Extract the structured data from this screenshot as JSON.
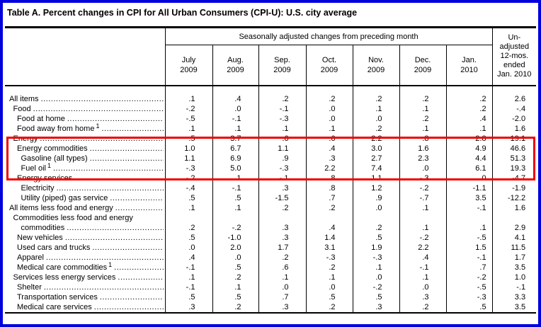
{
  "title": "Table A. Percent changes in CPI for All Urban Consumers (CPI-U): U.S. city average",
  "header": {
    "seasonal": "Seasonally adjusted changes from preceding month",
    "unadjusted_lines": [
      "Un-",
      "adjusted",
      "12-mos.",
      "ended",
      "Jan. 2010"
    ]
  },
  "table": {
    "month_columns": [
      {
        "month": "July",
        "year": "2009"
      },
      {
        "month": "Aug.",
        "year": "2009"
      },
      {
        "month": "Sep.",
        "year": "2009"
      },
      {
        "month": "Oct.",
        "year": "2009"
      },
      {
        "month": "Nov.",
        "year": "2009"
      },
      {
        "month": "Dec.",
        "year": "2009"
      },
      {
        "month": "Jan.",
        "year": "2010"
      }
    ],
    "rows": [
      {
        "label": "All items",
        "indent": 0,
        "values": [
          ".1",
          ".4",
          ".2",
          ".2",
          ".2",
          ".2",
          ".2"
        ],
        "annual": "2.6"
      },
      {
        "label": "Food",
        "indent": 1,
        "values": [
          "-.2",
          ".0",
          "-.1",
          ".0",
          ".1",
          ".1",
          ".2"
        ],
        "annual": "-.4"
      },
      {
        "label": "Food at home",
        "indent": 2,
        "values": [
          "-.5",
          "-.1",
          "-.3",
          ".0",
          ".0",
          ".2",
          ".4"
        ],
        "annual": "-2.0"
      },
      {
        "label": "Food away from home",
        "sup": "1",
        "indent": 2,
        "values": [
          ".1",
          ".1",
          ".1",
          ".1",
          ".2",
          ".1",
          ".1"
        ],
        "annual": "1.6"
      },
      {
        "label": "Energy",
        "indent": 1,
        "values": [
          ".5",
          "3.7",
          ".6",
          ".6",
          "2.2",
          ".8",
          "2.8"
        ],
        "annual": "19.1"
      },
      {
        "label": "Energy commodities",
        "indent": 2,
        "values": [
          "1.0",
          "6.7",
          "1.1",
          ".4",
          "3.0",
          "1.6",
          "4.9"
        ],
        "annual": "46.6"
      },
      {
        "label": "Gasoline (all types)",
        "indent": 3,
        "values": [
          "1.1",
          "6.9",
          ".9",
          ".3",
          "2.7",
          "2.3",
          "4.4"
        ],
        "annual": "51.3"
      },
      {
        "label": "Fuel oil",
        "sup": "1",
        "indent": 3,
        "values": [
          "-.3",
          "5.0",
          "-.3",
          "2.2",
          "7.4",
          ".0",
          "6.1"
        ],
        "annual": "19.3"
      },
      {
        "label": "Energy services",
        "indent": 2,
        "values": [
          "-.2",
          ".1",
          "-.1",
          ".8",
          "1.1",
          "-.3",
          ".0"
        ],
        "annual": "-4.7"
      },
      {
        "label": "Electricity",
        "indent": 3,
        "values": [
          "-.4",
          "-.1",
          ".3",
          ".8",
          "1.2",
          "-.2",
          "-1.1"
        ],
        "annual": "-1.9"
      },
      {
        "label": "Utility (piped) gas service",
        "indent": 3,
        "values": [
          ".5",
          ".5",
          "-1.5",
          ".7",
          ".9",
          "-.7",
          "3.5"
        ],
        "annual": "-12.2"
      },
      {
        "label": "All items less food and energy",
        "indent": 0,
        "values": [
          ".1",
          ".1",
          ".2",
          ".2",
          ".0",
          ".1",
          "-.1"
        ],
        "annual": "1.6"
      },
      {
        "label": "Commodities less food and energy",
        "label2": "commodities",
        "indent": 1,
        "values": [
          ".2",
          "-.2",
          ".3",
          ".4",
          ".2",
          ".1",
          ".1"
        ],
        "annual": "2.9"
      },
      {
        "label": "New vehicles",
        "indent": 2,
        "values": [
          ".5",
          "-1.0",
          ".3",
          "1.4",
          ".5",
          "-.2",
          "-.5"
        ],
        "annual": "4.1"
      },
      {
        "label": "Used cars and trucks",
        "indent": 2,
        "values": [
          ".0",
          "2.0",
          "1.7",
          "3.1",
          "1.9",
          "2.2",
          "1.5"
        ],
        "annual": "11.5"
      },
      {
        "label": "Apparel",
        "indent": 2,
        "values": [
          ".4",
          ".0",
          ".2",
          "-.3",
          "-.3",
          ".4",
          "-.1"
        ],
        "annual": "1.7"
      },
      {
        "label": "Medical care commodities",
        "sup": "1",
        "indent": 2,
        "values": [
          "-.1",
          ".5",
          ".6",
          ".2",
          ".1",
          "-.1",
          ".7"
        ],
        "annual": "3.5"
      },
      {
        "label": "Services less energy services",
        "indent": 1,
        "values": [
          ".1",
          ".2",
          ".1",
          ".1",
          ".0",
          ".1",
          "-.2"
        ],
        "annual": "1.0"
      },
      {
        "label": "Shelter",
        "indent": 2,
        "values": [
          "-.1",
          ".1",
          ".0",
          ".0",
          "-.2",
          ".0",
          "-.5"
        ],
        "annual": "-.1"
      },
      {
        "label": "Transportation services",
        "indent": 2,
        "values": [
          ".5",
          ".5",
          ".7",
          ".5",
          ".5",
          ".3",
          "-.3"
        ],
        "annual": "3.3"
      },
      {
        "label": "Medical care services",
        "indent": 2,
        "values": [
          ".3",
          ".2",
          ".3",
          ".2",
          ".3",
          ".2",
          ".5"
        ],
        "annual": "3.5"
      }
    ]
  },
  "annotations": {
    "frame_color": "#0000dd",
    "highlight_color": "#ee0000",
    "highlighted_rows": [
      "Energy",
      "Energy commodities",
      "Gasoline (all types)",
      "Fuel oil"
    ]
  }
}
